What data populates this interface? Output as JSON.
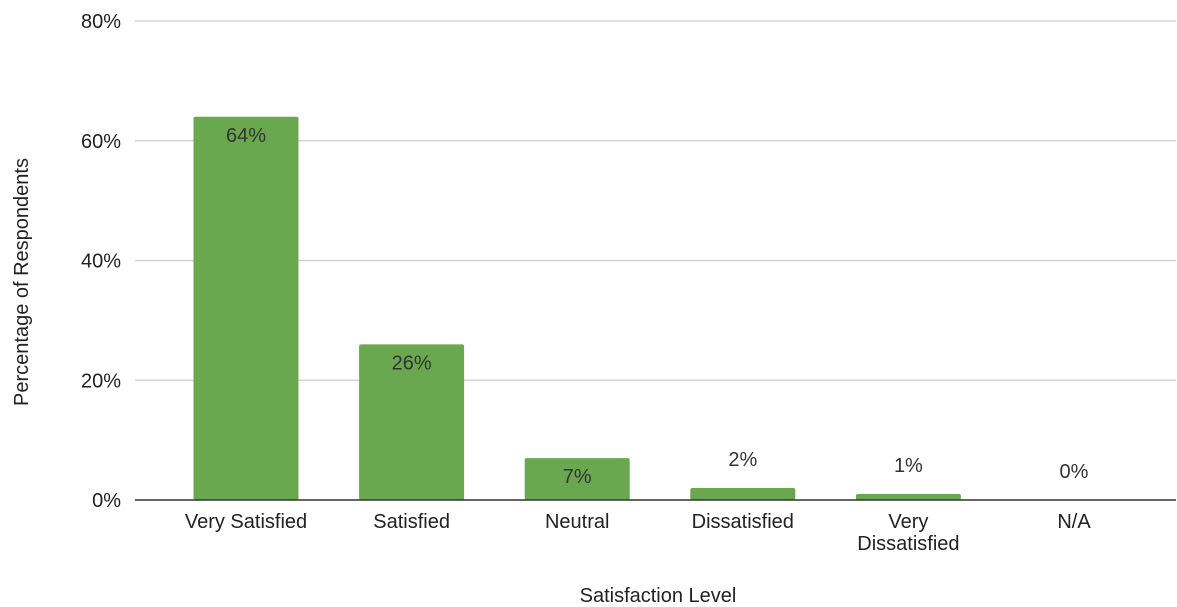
{
  "chart_data": {
    "type": "bar",
    "title": "",
    "xlabel": "Satisfaction Level",
    "ylabel": "Percentage of Respondents",
    "categories": [
      [
        "Very Satisfied"
      ],
      [
        "Satisfied"
      ],
      [
        "Neutral"
      ],
      [
        "Dissatisfied"
      ],
      [
        "Very",
        "Dissatisfied"
      ],
      [
        "N/A"
      ]
    ],
    "values": [
      64,
      26,
      7,
      2,
      1,
      0
    ],
    "data_labels": [
      "64%",
      "26%",
      "7%",
      "2%",
      "1%",
      "0%"
    ],
    "ylim": [
      0,
      80
    ],
    "yticks": [
      0,
      20,
      40,
      60,
      80
    ],
    "ytick_labels": [
      "0%",
      "20%",
      "40%",
      "60%",
      "80%"
    ],
    "grid": true,
    "legend": "none",
    "bar_color": "#6aa84f",
    "gridline_color": "#cccccc",
    "axis_color": "#333333"
  }
}
